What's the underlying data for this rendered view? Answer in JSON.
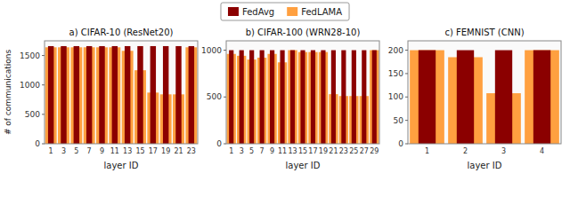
{
  "chart_data": [
    {
      "type": "bar",
      "title": "a) CIFAR-10 (ResNet20)",
      "x_label": "layer ID",
      "y_label": "# of communications",
      "categories": [
        1,
        3,
        5,
        7,
        9,
        11,
        13,
        15,
        17,
        19,
        21,
        23
      ],
      "series": [
        {
          "name": "FedAvg",
          "color": "#8B0000",
          "values": [
            1660,
            1660,
            1660,
            1660,
            1660,
            1660,
            1660,
            1660,
            1660,
            1660,
            1660,
            1660
          ]
        },
        {
          "name": "FedLAMA",
          "color": "#FFA040",
          "values": [
            1640,
            1640,
            1640,
            1640,
            1640,
            1640,
            1580,
            1250,
            870,
            840,
            840,
            1640
          ]
        }
      ],
      "ylim": [
        0,
        1750
      ],
      "yticks": [
        0,
        500,
        1000,
        1500
      ],
      "legend": "top"
    },
    {
      "type": "bar",
      "title": "b) CIFAR-100 (WRN28-10)",
      "x_label": "layer ID",
      "categories": [
        1,
        3,
        5,
        7,
        9,
        11,
        13,
        15,
        17,
        19,
        21,
        23,
        25,
        27,
        29
      ],
      "series": [
        {
          "name": "FedAvg",
          "color": "#8B0000",
          "values": [
            1000,
            1000,
            1000,
            1000,
            1000,
            1000,
            1000,
            1000,
            1000,
            1000,
            1000,
            1000,
            1000,
            1000,
            1000
          ]
        },
        {
          "name": "FedLAMA",
          "color": "#FFA040",
          "values": [
            960,
            940,
            900,
            920,
            960,
            870,
            1000,
            980,
            980,
            980,
            530,
            510,
            510,
            510,
            1000
          ]
        }
      ],
      "ylim": [
        0,
        1100
      ],
      "yticks": [
        0,
        500,
        1000
      ]
    },
    {
      "type": "bar",
      "title": "c) FEMNIST (CNN)",
      "x_label": "layer ID",
      "categories": [
        1,
        2,
        3,
        4
      ],
      "series": [
        {
          "name": "FedAvg",
          "color": "#8B0000",
          "values": [
            200,
            200,
            200,
            200
          ]
        },
        {
          "name": "FedLAMA",
          "color": "#FFA040",
          "values": [
            200,
            185,
            108,
            200
          ]
        }
      ],
      "ylim": [
        0,
        220
      ],
      "yticks": [
        0,
        50,
        100,
        150,
        200
      ]
    }
  ]
}
